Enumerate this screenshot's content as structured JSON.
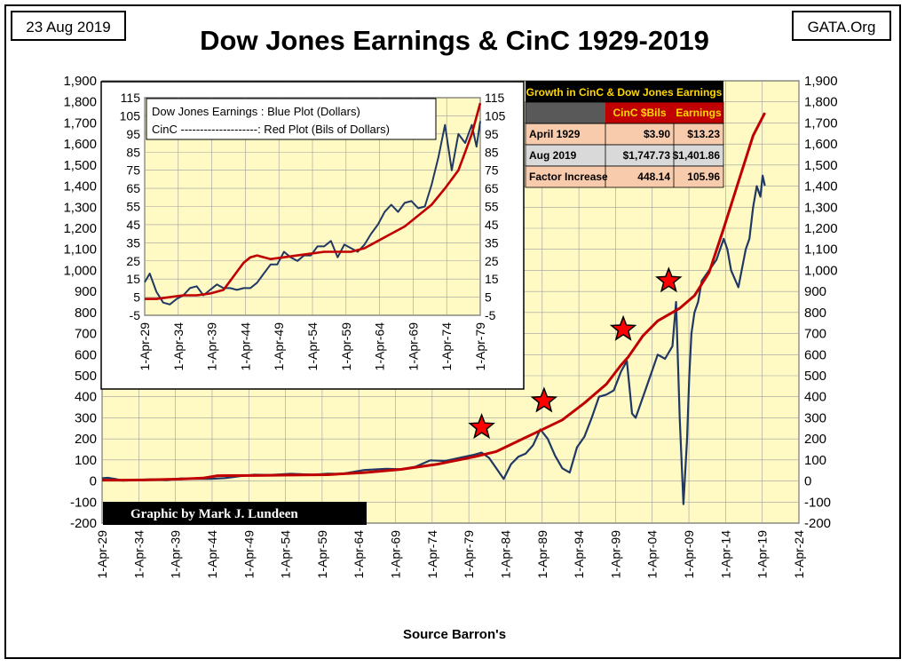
{
  "header": {
    "date": "23 Aug 2019",
    "site": "GATA.Org",
    "title": "Dow Jones Earnings & CinC 1929-2019"
  },
  "footer": {
    "source": "Source Barron's",
    "credit": "Graphic by Mark J. Lundeen"
  },
  "colors": {
    "plot_background": "#fff9c4",
    "earnings_line": "#1f3864",
    "cinc_line": "#c00000",
    "star_fill": "#ff0000",
    "table_header": "#000000",
    "table_header_text": "#ffd700",
    "table_dark": "#595959",
    "table_accent": "#c00000",
    "table_peach": "#f8cbad",
    "table_grey": "#d9d9d9"
  },
  "table": {
    "title": "Growth in CinC & Dow Jones Earnings",
    "columns": [
      "",
      "CinC $Bils",
      "Earnings"
    ],
    "rows": [
      {
        "label": "April 1929",
        "cinc": "$3.90",
        "earnings": "$13.23"
      },
      {
        "label": "Aug 2019",
        "cinc": "$1,747.73",
        "earnings": "$1,401.86"
      },
      {
        "label": "Factor Increase",
        "cinc": "448.14",
        "earnings": "105.96"
      }
    ]
  },
  "chart_data": [
    {
      "type": "line",
      "title": "Dow Jones Earnings & CinC 1929-2019",
      "x_tick_labels": [
        "1-Apr-29",
        "1-Apr-34",
        "1-Apr-39",
        "1-Apr-44",
        "1-Apr-49",
        "1-Apr-54",
        "1-Apr-59",
        "1-Apr-64",
        "1-Apr-69",
        "1-Apr-74",
        "1-Apr-79",
        "1-Apr-84",
        "1-Apr-89",
        "1-Apr-94",
        "1-Apr-99",
        "1-Apr-04",
        "1-Apr-09",
        "1-Apr-14",
        "1-Apr-19",
        "1-Apr-24"
      ],
      "xlim": [
        1929.25,
        2024.25
      ],
      "ylim": [
        -200,
        1900
      ],
      "y_ticks": [
        -200,
        -100,
        0,
        100,
        200,
        300,
        400,
        500,
        600,
        700,
        800,
        900,
        1000,
        1100,
        1200,
        1300,
        1400,
        1500,
        1600,
        1700,
        1800,
        1900
      ],
      "grid": true,
      "series": [
        {
          "name": "Dow Jones Earnings",
          "x": [
            1929.25,
            1930,
            1931,
            1932,
            1933,
            1934,
            1936,
            1938,
            1940,
            1942,
            1944,
            1946,
            1948,
            1950,
            1952,
            1955,
            1958,
            1960,
            1962,
            1965,
            1968,
            1970,
            1972,
            1974,
            1976,
            1978,
            1980,
            1981,
            1982,
            1983,
            1984,
            1985,
            1986,
            1987,
            1988,
            1989,
            1990,
            1991,
            1992,
            1993,
            1994,
            1995,
            1996,
            1997,
            1998,
            1999,
            2000,
            2000.8,
            2001.5,
            2002,
            2003,
            2004,
            2005,
            2006,
            2007,
            2007.5,
            2008,
            2008.5,
            2009,
            2009.3,
            2009.6,
            2010,
            2010.5,
            2011,
            2012,
            2013,
            2014,
            2014.5,
            2015,
            2016,
            2017,
            2017.5,
            2018,
            2018.5,
            2019,
            2019.3,
            2019.6
          ],
          "y": [
            13,
            15,
            10,
            2,
            3,
            5,
            8,
            4,
            12,
            10,
            10,
            14,
            23,
            30,
            28,
            34,
            30,
            35,
            34,
            52,
            58,
            56,
            68,
            98,
            95,
            110,
            125,
            135,
            110,
            60,
            10,
            80,
            115,
            130,
            170,
            245,
            200,
            120,
            60,
            40,
            160,
            210,
            300,
            400,
            410,
            430,
            520,
            570,
            320,
            300,
            400,
            500,
            600,
            580,
            640,
            850,
            300,
            -110,
            200,
            500,
            700,
            800,
            850,
            950,
            1000,
            1050,
            1150,
            1100,
            1000,
            920,
            1100,
            1150,
            1300,
            1400,
            1350,
            1450,
            1401.86
          ]
        },
        {
          "name": "CinC",
          "x": [
            1929.25,
            1932,
            1935,
            1940,
            1943,
            1945,
            1950,
            1955,
            1960,
            1965,
            1970,
            1975,
            1980,
            1983,
            1986,
            1989,
            1992,
            1995,
            1998,
            2000,
            2001,
            2003,
            2005,
            2008,
            2010,
            2012,
            2014,
            2016,
            2018,
            2019.6
          ],
          "y": [
            3.9,
            4,
            5,
            9,
            14,
            25,
            26,
            28,
            30,
            40,
            55,
            80,
            115,
            140,
            190,
            240,
            290,
            370,
            460,
            550,
            590,
            690,
            760,
            820,
            880,
            990,
            1200,
            1420,
            1640,
            1747.73
          ]
        }
      ],
      "annotations": [
        {
          "type": "star",
          "x": 1981,
          "y": 255
        },
        {
          "type": "star",
          "x": 1989.5,
          "y": 380
        },
        {
          "type": "star",
          "x": 2000.3,
          "y": 720
        },
        {
          "type": "star",
          "x": 2006.5,
          "y": 950
        }
      ]
    },
    {
      "type": "line",
      "x_tick_labels": [
        "1-Apr-29",
        "1-Apr-34",
        "1-Apr-39",
        "1-Apr-44",
        "1-Apr-49",
        "1-Apr-54",
        "1-Apr-59",
        "1-Apr-64",
        "1-Apr-69",
        "1-Apr-74",
        "1-Apr-79"
      ],
      "xlim": [
        1929.25,
        1979.25
      ],
      "ylim": [
        -5,
        115
      ],
      "y_ticks": [
        -5,
        5,
        15,
        25,
        35,
        45,
        55,
        65,
        75,
        85,
        95,
        105,
        115
      ],
      "grid": true,
      "legend": [
        "Dow Jones Earnings : Blue Plot (Dollars)",
        "CinC --------------------: Red Plot (Bils of Dollars)"
      ],
      "legend_position": "top-left",
      "series": [
        {
          "name": "Dow Jones Earnings",
          "x": [
            1929.25,
            1930,
            1931,
            1932,
            1933,
            1934,
            1935,
            1936,
            1937,
            1938,
            1939,
            1940,
            1941,
            1942,
            1943,
            1944,
            1945,
            1946,
            1947,
            1948,
            1949,
            1950,
            1951,
            1952,
            1953,
            1954,
            1955,
            1956,
            1957,
            1958,
            1959,
            1960,
            1961,
            1962,
            1963,
            1964,
            1965,
            1966,
            1967,
            1968,
            1969,
            1970,
            1971,
            1972,
            1973,
            1974,
            1975,
            1976,
            1977,
            1978,
            1978.7,
            1979.25
          ],
          "y": [
            13.2,
            18,
            8,
            2,
            1,
            4,
            6,
            10,
            11,
            6,
            9,
            12,
            10,
            10,
            9,
            10,
            10,
            13,
            18,
            23,
            23,
            30,
            27,
            25,
            28,
            28,
            33,
            33,
            36,
            27,
            34,
            32,
            30,
            34,
            40,
            45,
            52,
            56,
            52,
            57,
            58,
            54,
            55,
            67,
            82,
            100,
            75,
            95,
            90,
            100,
            88,
            102
          ]
        },
        {
          "name": "CinC",
          "x": [
            1929.25,
            1931,
            1933,
            1935,
            1937,
            1939,
            1941,
            1942,
            1943,
            1944,
            1945,
            1946,
            1948,
            1950,
            1952,
            1954,
            1956,
            1958,
            1960,
            1962,
            1964,
            1966,
            1968,
            1970,
            1972,
            1974,
            1976,
            1977,
            1978,
            1979.25
          ],
          "y": [
            4,
            4,
            5,
            6,
            6,
            7,
            9,
            14,
            19,
            24,
            27,
            28,
            26,
            27,
            28,
            29,
            30,
            30,
            30,
            32,
            36,
            40,
            44,
            50,
            56,
            65,
            75,
            85,
            95,
            112
          ]
        }
      ]
    }
  ]
}
